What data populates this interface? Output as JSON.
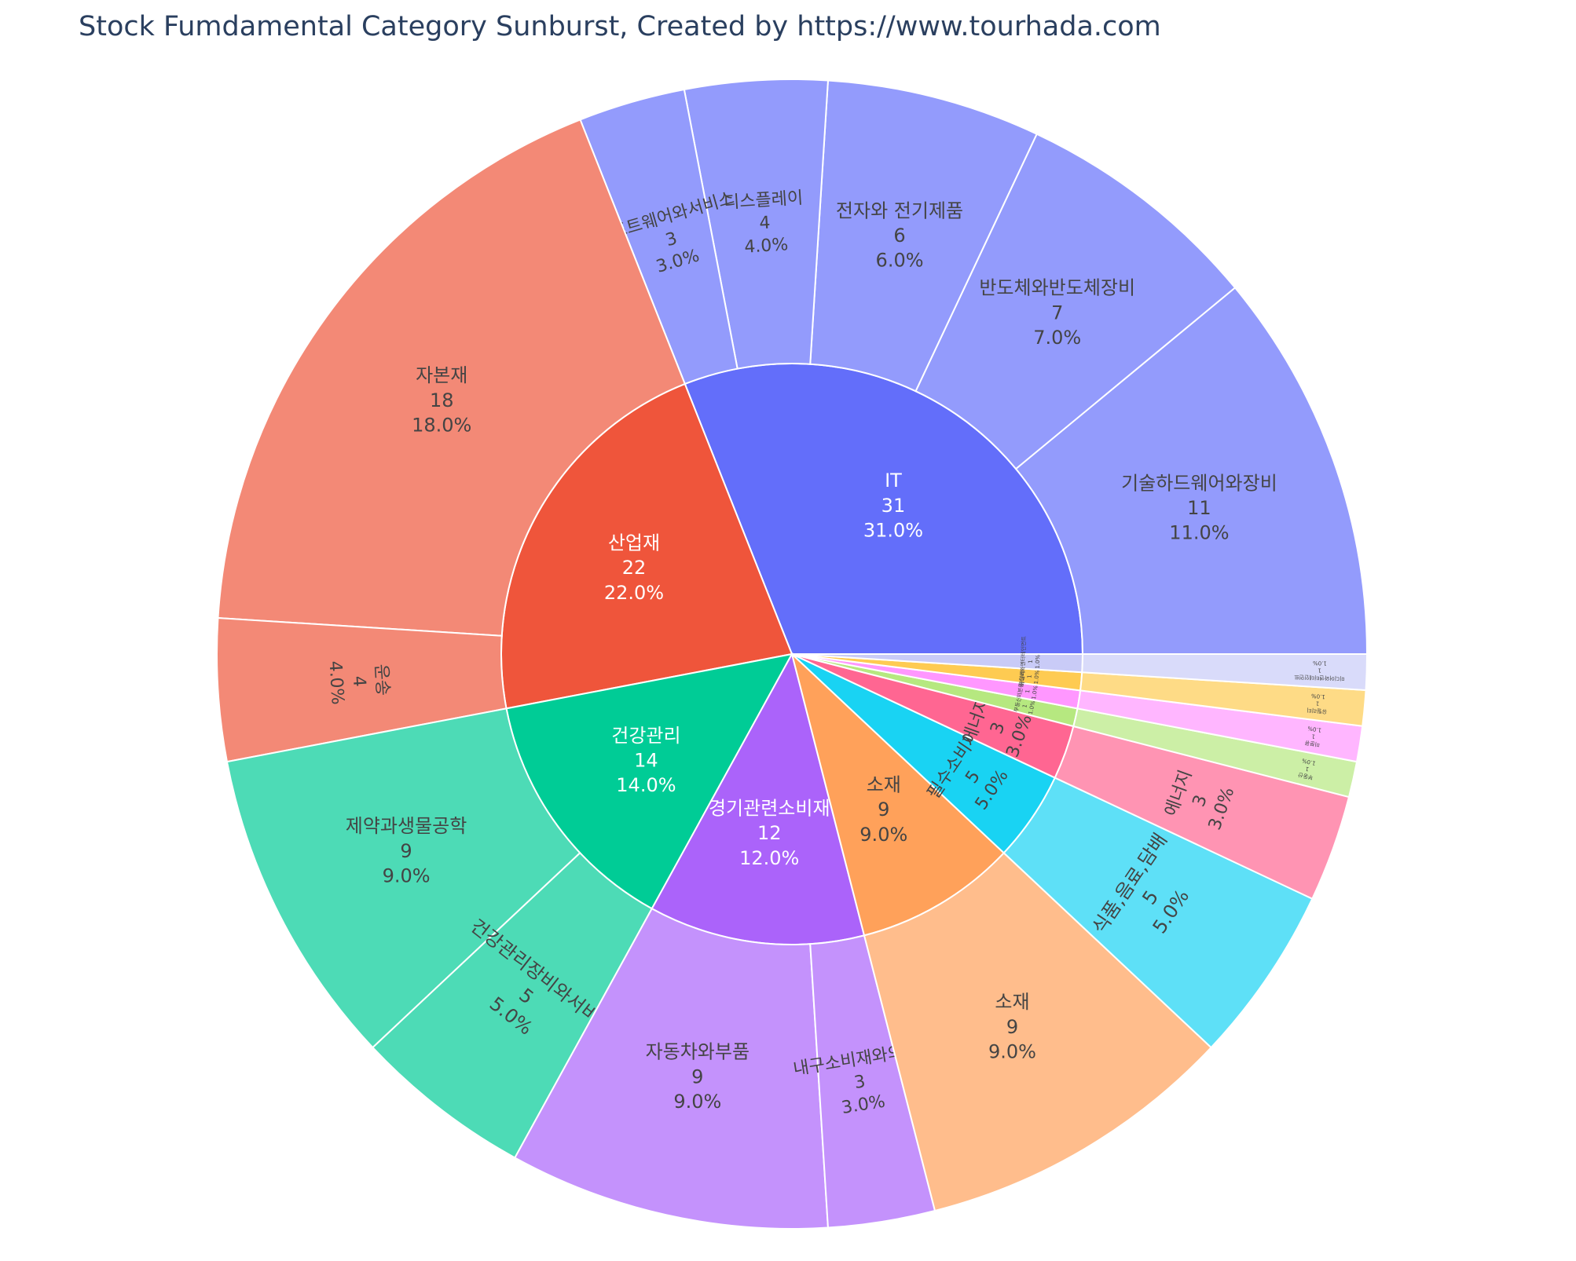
{
  "title": "Stock Fumdamental Category Sunburst, Created by https://www.tourhada.com",
  "chart_data": {
    "type": "sunburst",
    "title": "Stock Fumdamental Category Sunburst, Created by https://www.tourhada.com",
    "total": 100,
    "sectors": [
      {
        "label": "IT",
        "value": 31,
        "percent": "31.0%",
        "color": "#636efa",
        "childColor": "#939bfc",
        "children": [
          {
            "label": "기술하드웨어와장비",
            "value": 11,
            "percent": "11.0%"
          },
          {
            "label": "반도체와반도체장비",
            "value": 7,
            "percent": "7.0%"
          },
          {
            "label": "전자와 전기제품",
            "value": 6,
            "percent": "6.0%"
          },
          {
            "label": "디스플레이",
            "value": 4,
            "percent": "4.0%"
          },
          {
            "label": "소프트웨어와서비스",
            "value": 3,
            "percent": "3.0%"
          }
        ]
      },
      {
        "label": "산업재",
        "value": 22,
        "percent": "22.0%",
        "color": "#ef553b",
        "childColor": "#f38976",
        "children": [
          {
            "label": "자본재",
            "value": 18,
            "percent": "18.0%"
          },
          {
            "label": "운송",
            "value": 4,
            "percent": "4.0%"
          }
        ]
      },
      {
        "label": "건강관리",
        "value": 14,
        "percent": "14.0%",
        "color": "#00cc96",
        "childColor": "#4ddbb6",
        "children": [
          {
            "label": "제약과생물공학",
            "value": 9,
            "percent": "9.0%"
          },
          {
            "label": "건강관리장비와서비스",
            "value": 5,
            "percent": "5.0%"
          }
        ]
      },
      {
        "label": "경기관련소비재",
        "value": 12,
        "percent": "12.0%",
        "color": "#ab63fa",
        "childColor": "#c492fc",
        "children": [
          {
            "label": "자동차와부품",
            "value": 9,
            "percent": "9.0%"
          },
          {
            "label": "내구소비재와의류",
            "value": 3,
            "percent": "3.0%"
          }
        ]
      },
      {
        "label": "소재",
        "value": 9,
        "percent": "9.0%",
        "color": "#ffa15a",
        "childColor": "#ffbd8c",
        "children": [
          {
            "label": "소재",
            "value": 9,
            "percent": "9.0%"
          }
        ]
      },
      {
        "label": "필수소비재",
        "value": 5,
        "percent": "5.0%",
        "color": "#19d3f3",
        "childColor": "#5ee0f7",
        "children": [
          {
            "label": "식품,음료,담배",
            "value": 5,
            "percent": "5.0%"
          }
        ]
      },
      {
        "label": "에너지",
        "value": 3,
        "percent": "3.0%",
        "color": "#ff6692",
        "childColor": "#ff94b3",
        "children": [
          {
            "label": "에너지",
            "value": 3,
            "percent": "3.0%"
          }
        ]
      },
      {
        "label": "부동산",
        "value": 1,
        "percent": "1.0%",
        "color": "#b6e880",
        "childColor": "#ccefa6",
        "children": [
          {
            "label": "부동산",
            "value": 1,
            "percent": "1.0%"
          }
        ]
      },
      {
        "label": "미분류",
        "value": 1,
        "percent": "1.0%",
        "color": "#ff97ff",
        "childColor": "#ffb6ff",
        "children": [
          {
            "label": "미분류",
            "value": 1,
            "percent": "1.0%"
          }
        ]
      },
      {
        "label": "유틸리티",
        "value": 1,
        "percent": "1.0%",
        "color": "#fecb52",
        "childColor": "#fedb86",
        "children": [
          {
            "label": "유틸리티",
            "value": 1,
            "percent": "1.0%"
          }
        ]
      },
      {
        "label": "미디어와엔터테인먼트",
        "value": 1,
        "percent": "1.0%",
        "color": "#c9cbf7",
        "childColor": "#d9dbfa",
        "children": [
          {
            "label": "미디어와엔터테인먼트",
            "value": 1,
            "percent": "1.0%"
          }
        ]
      }
    ]
  }
}
